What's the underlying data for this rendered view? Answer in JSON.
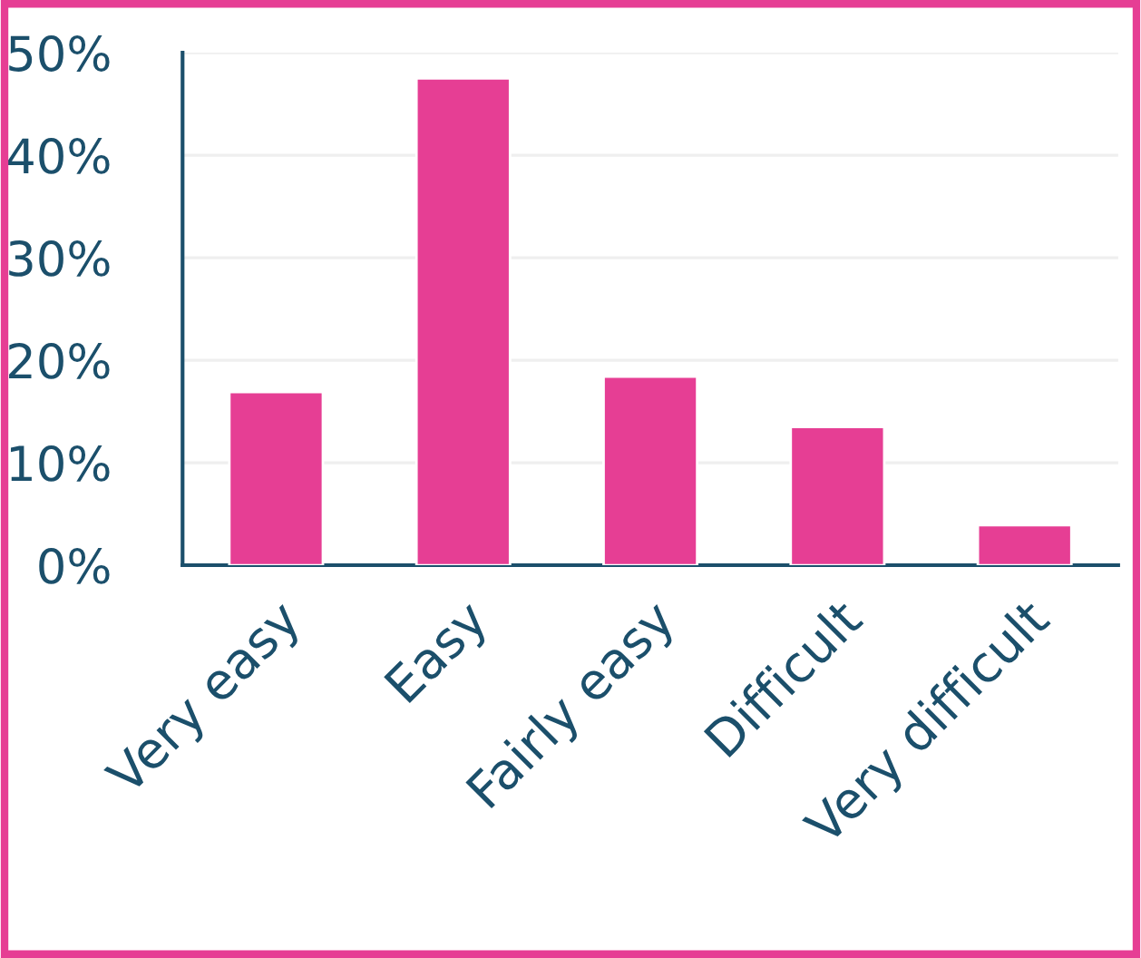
{
  "chart_data": {
    "type": "bar",
    "categories": [
      "Very easy",
      "Easy",
      "Fairly easy",
      "Difficult",
      "Very difficult"
    ],
    "values": [
      16.9,
      47.5,
      18.4,
      13.5,
      3.9
    ],
    "color": "#e63e94",
    "ylim": [
      0,
      50
    ],
    "yticks": [
      {
        "value": 0,
        "label": "0%"
      },
      {
        "value": 10,
        "label": "10%"
      },
      {
        "value": 20,
        "label": "20%"
      },
      {
        "value": 30,
        "label": "30%"
      },
      {
        "value": 40,
        "label": "40%"
      },
      {
        "value": 50,
        "label": "50%"
      }
    ],
    "grid": "y"
  }
}
